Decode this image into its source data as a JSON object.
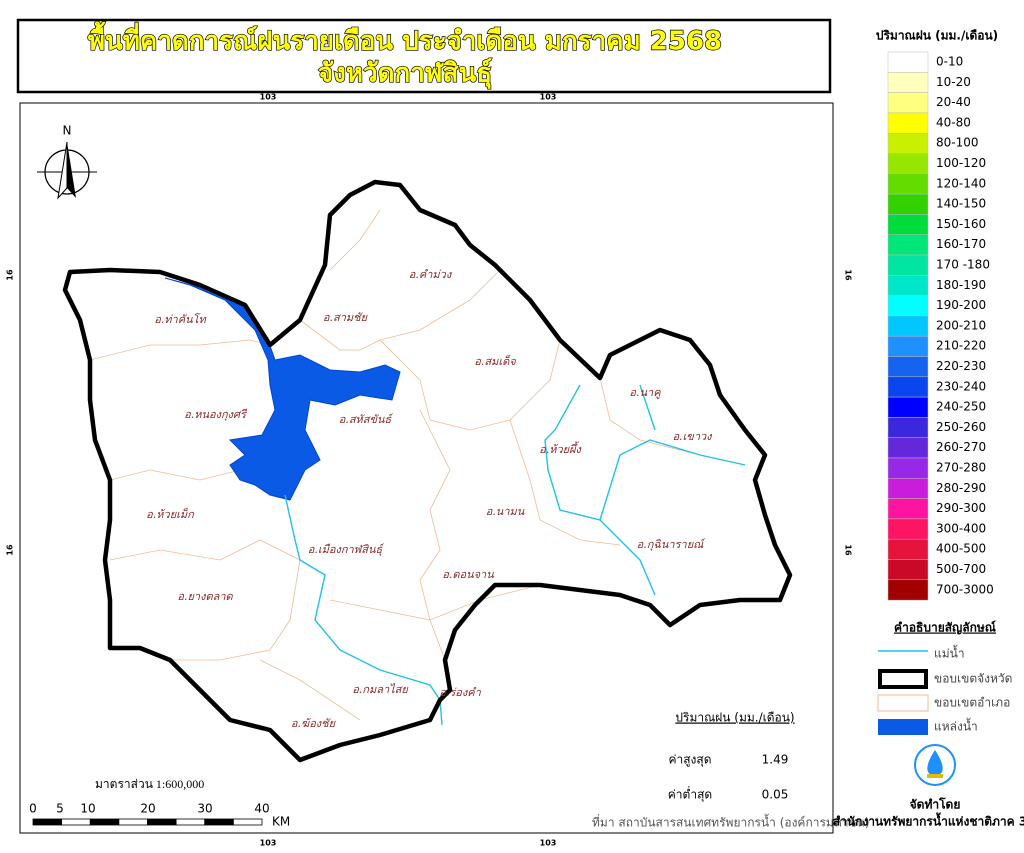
{
  "title": [
    "พื้นที่คาดการณ์ฝนรายเดือน ประจำเดือน มกราคม 2568",
    "จังหวัดกาฬสินธุ์"
  ],
  "coordinates": {
    "top": [
      "103",
      "103"
    ],
    "bottom": [
      "103",
      "103"
    ],
    "left": [
      "16",
      "16"
    ],
    "right": [
      "16",
      "16"
    ]
  },
  "north": "N",
  "districts": [
    "อ.ท่าคันโท",
    "อ.สามชัย",
    "อ.คำม่วง",
    "อ.สมเด็จ",
    "อ.สหัสขันธ์",
    "อ.หนองกุงศรี",
    "อ.นาคู",
    "อ.เขาวง",
    "อ.ห้วยผึ้ง",
    "อ.ห้วยเม็ก",
    "อ.นามน",
    "อ.เมืองกาฬสินธุ์",
    "อ.กุฉินารายณ์",
    "อ.ดอนจาน",
    "อ.ยางตลาด",
    "อ.กมลาไสย",
    "อ.ร่องคำ",
    "อ.ฆ้องชัย"
  ],
  "stats": {
    "title": "ปริมาณฝน (มม./เดือน)",
    "rows": [
      {
        "label": "ค่าสูงสุด",
        "value": "1.49"
      },
      {
        "label": "ค่าต่ำสุด",
        "value": "0.05"
      }
    ]
  },
  "scale": {
    "ratio": "มาตราส่วน 1:600,000",
    "ticks": [
      "0",
      "5",
      "10",
      "20",
      "30",
      "40"
    ],
    "unit": "KM"
  },
  "source": "ที่มา  สถาบันสารสนเทศทรัพยากรน้ำ (องค์การมหาชน)",
  "legend": {
    "title": "ปริมาณฝน (มม./เดือน)",
    "classes": [
      {
        "label": "0-10",
        "color": "#ffffff"
      },
      {
        "label": "10-20",
        "color": "#ffffbe"
      },
      {
        "label": "20-40",
        "color": "#ffff80"
      },
      {
        "label": "40-80",
        "color": "#ffff00"
      },
      {
        "label": "80-100",
        "color": "#c8f000"
      },
      {
        "label": "100-120",
        "color": "#96e600"
      },
      {
        "label": "120-140",
        "color": "#64dc00"
      },
      {
        "label": "140-150",
        "color": "#32d200"
      },
      {
        "label": "150-160",
        "color": "#00dc3c"
      },
      {
        "label": "160-170",
        "color": "#00e678"
      },
      {
        "label": "170 -180",
        "color": "#00e6a0"
      },
      {
        "label": "180-190",
        "color": "#00e6c8"
      },
      {
        "label": "190-200",
        "color": "#00ffff"
      },
      {
        "label": "200-210",
        "color": "#00c8ff"
      },
      {
        "label": "210-220",
        "color": "#1e90ff"
      },
      {
        "label": "220-230",
        "color": "#1464f0"
      },
      {
        "label": "230-240",
        "color": "#0a46f0"
      },
      {
        "label": "240-250",
        "color": "#0000ff"
      },
      {
        "label": "250-260",
        "color": "#3c28dc"
      },
      {
        "label": "260-270",
        "color": "#6428dc"
      },
      {
        "label": "270-280",
        "color": "#9628e6"
      },
      {
        "label": "280-290",
        "color": "#c81edc"
      },
      {
        "label": "290-300",
        "color": "#ff14a0"
      },
      {
        "label": "300-400",
        "color": "#ff1464"
      },
      {
        "label": "400-500",
        "color": "#e6143c"
      },
      {
        "label": "500-700",
        "color": "#c80a28"
      },
      {
        "label": "700-3000",
        "color": "#a00000"
      }
    ]
  },
  "symbols": {
    "title": "คำอธิบายสัญลักษณ์",
    "items": [
      "แม่น้ำ",
      "ขอบเขตจังหวัด",
      "ขอบเขตอำเภอ",
      "แหล่งน้ำ"
    ]
  },
  "producer": {
    "label": "จัดทำโดย",
    "name": "สำนักงานทรัพยากรน้ำแห่งชาติภาค 3"
  }
}
